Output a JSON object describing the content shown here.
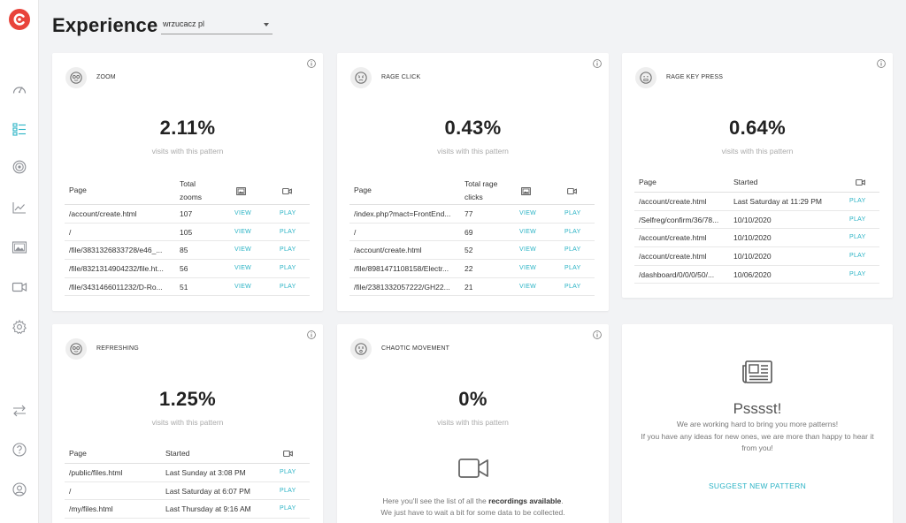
{
  "header": {
    "title": "Experience",
    "site_select": "wrzucacz pl"
  },
  "colors": {
    "accent": "#2ab3c5",
    "logo": "#e8433b",
    "background": "#f2f3f5"
  },
  "sidebar": {
    "items": [
      {
        "icon": "dashboard-icon"
      },
      {
        "icon": "experience-icon",
        "active": true
      },
      {
        "icon": "target-icon"
      },
      {
        "icon": "chart-icon"
      },
      {
        "icon": "heatmap-icon"
      },
      {
        "icon": "recordings-icon"
      },
      {
        "icon": "settings-icon"
      },
      {
        "icon": "swap-icon"
      },
      {
        "icon": "help-icon"
      },
      {
        "icon": "account-icon"
      }
    ]
  },
  "cards": {
    "zoom": {
      "title": "ZOOM",
      "percent": "2.11%",
      "subtitle": "visits with this pattern",
      "headers": {
        "page": "Page",
        "total_line1": "Total",
        "total_line2": "zooms"
      },
      "rows": [
        {
          "page": "/account/create.html",
          "total": "107",
          "view": "VIEW",
          "play": "PLAY"
        },
        {
          "page": "/",
          "total": "105",
          "view": "VIEW",
          "play": "PLAY"
        },
        {
          "page": "/file/3831326833728/e46_...",
          "total": "85",
          "view": "VIEW",
          "play": "PLAY"
        },
        {
          "page": "/file/8321314904232/file.ht...",
          "total": "56",
          "view": "VIEW",
          "play": "PLAY"
        },
        {
          "page": "/file/3431466011232/D-Ro...",
          "total": "51",
          "view": "VIEW",
          "play": "PLAY"
        }
      ]
    },
    "rage_click": {
      "title": "RAGE CLICK",
      "percent": "0.43%",
      "subtitle": "visits with this pattern",
      "headers": {
        "page": "Page",
        "total_line1": "Total rage",
        "total_line2": "clicks"
      },
      "rows": [
        {
          "page": "/index.php?mact=FrontEnd...",
          "total": "77",
          "view": "VIEW",
          "play": "PLAY"
        },
        {
          "page": "/",
          "total": "69",
          "view": "VIEW",
          "play": "PLAY"
        },
        {
          "page": "/account/create.html",
          "total": "52",
          "view": "VIEW",
          "play": "PLAY"
        },
        {
          "page": "/file/8981471108158/Electr...",
          "total": "22",
          "view": "VIEW",
          "play": "PLAY"
        },
        {
          "page": "/file/2381332057222/GH22...",
          "total": "21",
          "view": "VIEW",
          "play": "PLAY"
        }
      ]
    },
    "rage_key_press": {
      "title": "RAGE KEY PRESS",
      "percent": "0.64%",
      "subtitle": "visits with this pattern",
      "headers": {
        "page": "Page",
        "started": "Started"
      },
      "rows": [
        {
          "page": "/account/create.html",
          "started": "Last Saturday at 11:29 PM",
          "play": "PLAY"
        },
        {
          "page": "/Selfreg/confirm/36/78...",
          "started": "10/10/2020",
          "play": "PLAY"
        },
        {
          "page": "/account/create.html",
          "started": "10/10/2020",
          "play": "PLAY"
        },
        {
          "page": "/account/create.html",
          "started": "10/10/2020",
          "play": "PLAY"
        },
        {
          "page": "/dashboard/0/0/0/50/...",
          "started": "10/06/2020",
          "play": "PLAY"
        }
      ]
    },
    "refreshing": {
      "title": "REFRESHING",
      "percent": "1.25%",
      "subtitle": "visits with this pattern",
      "headers": {
        "page": "Page",
        "started": "Started"
      },
      "rows": [
        {
          "page": "/public/files.html",
          "started": "Last Sunday at 3:08 PM",
          "play": "PLAY"
        },
        {
          "page": "/",
          "started": "Last Saturday at 6:07 PM",
          "play": "PLAY"
        },
        {
          "page": "/my/files.html",
          "started": "Last Thursday at 9:16 AM",
          "play": "PLAY"
        }
      ]
    },
    "chaotic_movement": {
      "title": "CHAOTIC MOVEMENT",
      "percent": "0%",
      "subtitle": "visits with this pattern",
      "empty_prefix": "Here you'll see the list of all the ",
      "empty_bold": "recordings available",
      "empty_suffix": ".",
      "empty_line2": "We just have to wait a bit for some data to be collected."
    },
    "promo": {
      "title": "Psssst!",
      "line1": "We are working hard to bring you more patterns!",
      "line2": "If you have any ideas for new ones, we are more than happy to hear it",
      "line3": "from you!",
      "link": "SUGGEST NEW PATTERN"
    }
  }
}
